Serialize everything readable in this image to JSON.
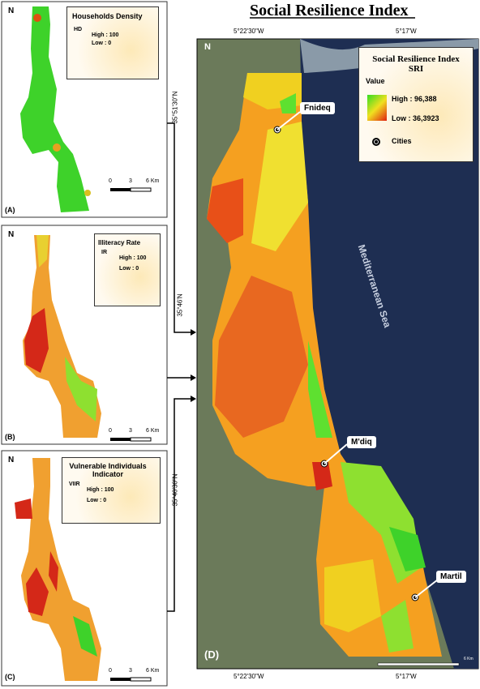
{
  "title": "Social Resilience Index",
  "panels": [
    {
      "label": "(A)",
      "north": "N",
      "legend": {
        "title": "Households  Density",
        "field": "HD",
        "high": "High : 100",
        "low": "Low : 0"
      },
      "scale": [
        "0",
        "3",
        "6 Km"
      ]
    },
    {
      "label": "(B)",
      "north": "N",
      "legend": {
        "title": "Illiteracy Rate",
        "field": "IR",
        "high": "High : 100",
        "low": "Low : 0"
      },
      "scale": [
        "0",
        "3",
        "6 Km"
      ]
    },
    {
      "label": "(C)",
      "north": "N",
      "legend": {
        "title": "Vulnerable Individuals Indicator",
        "field": "VIIR",
        "high": "High : 100",
        "low": "Low : 0"
      },
      "scale": [
        "0",
        "3",
        "6 Km"
      ]
    }
  ],
  "main": {
    "label": "(D)",
    "north": "N",
    "legend": {
      "title": "Social Resilience Index",
      "subtitle": "SRI",
      "value_label": "Value",
      "high": "High : 96,388",
      "low": "Low : 36,3923",
      "cities_label": "Cities"
    },
    "cities": [
      "Fnideq",
      "M'diq",
      "Martil"
    ],
    "sea": "Mediterranean Sea",
    "longitudes": [
      "5°22'30\"W",
      "5°17'W"
    ],
    "latitudes": [
      "35°51'30\"N",
      "35°46'N",
      "35°40'30\"N"
    ],
    "scale": "6 Km"
  }
}
